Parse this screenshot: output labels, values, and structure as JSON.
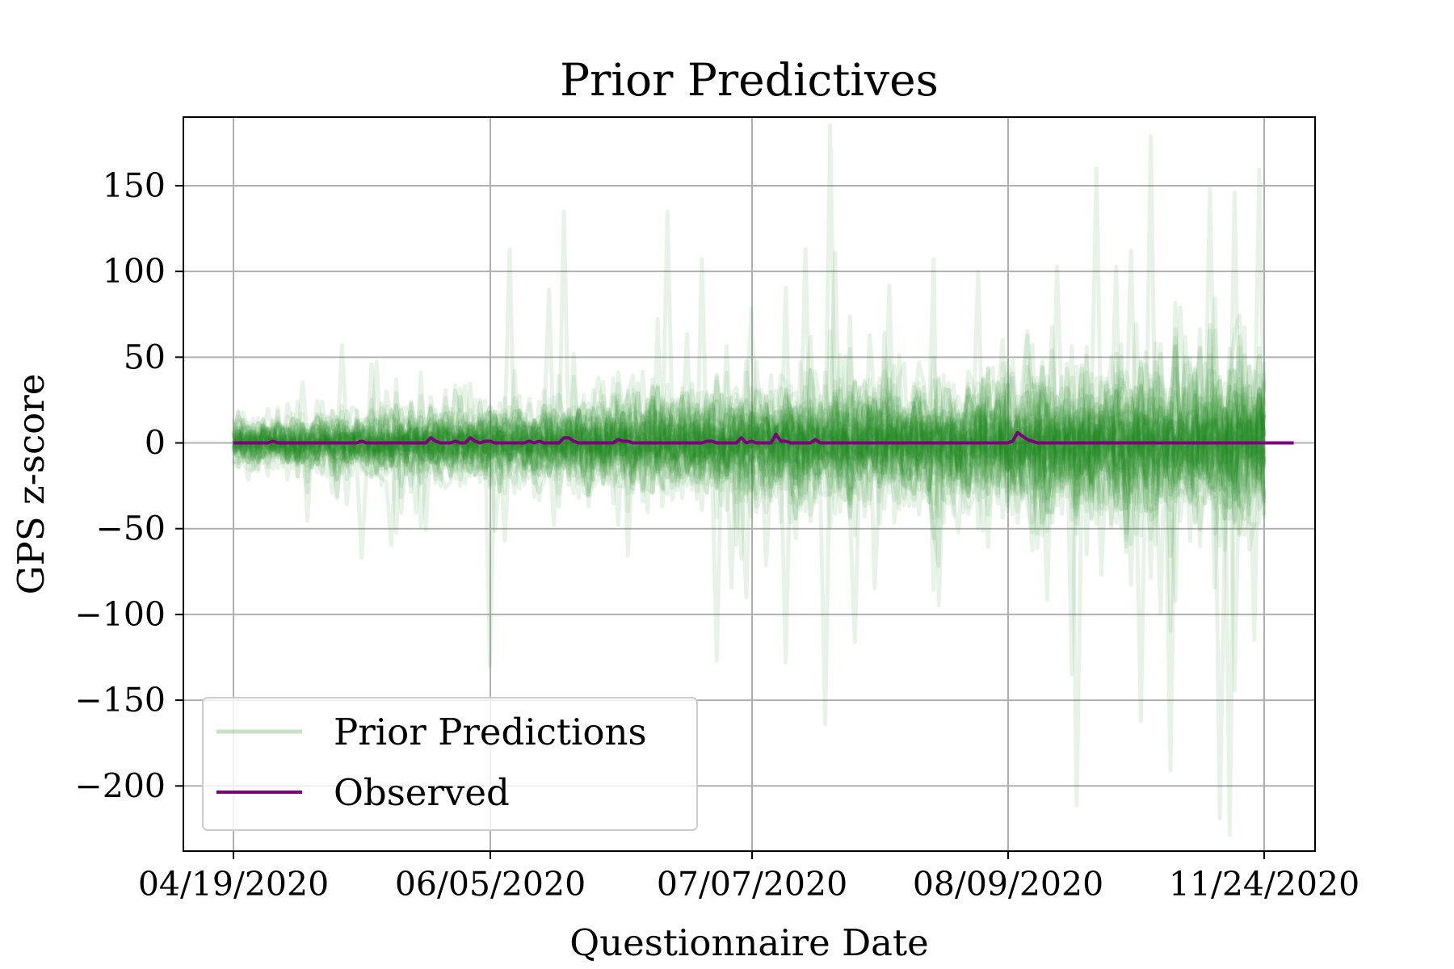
{
  "chart_data": {
    "type": "line",
    "title": "Prior Predictives",
    "xlabel": "Questionnaire Date",
    "ylabel": "GPS z-score",
    "x_tick_labels": [
      "04/19/2020",
      "06/05/2020",
      "07/07/2020",
      "08/09/2020",
      "11/24/2020"
    ],
    "y_ticks": [
      150,
      100,
      50,
      0,
      -50,
      -100,
      -150,
      -200
    ],
    "y_tick_labels": [
      "150",
      "100",
      "50",
      "0",
      "−50",
      "−100",
      "−150",
      "−200"
    ],
    "ylim": [
      -238,
      190
    ],
    "grid": true,
    "legend_position": "lower-left",
    "n_points": 210,
    "series": [
      {
        "name": "Prior Predictions",
        "color": "#228B22",
        "opacity": 0.1,
        "n_draws": 50,
        "description": "noisy prior predictive draws around zero, amplitude increasing over time",
        "notable_peaks": [
          {
            "x_index": 22,
            "value": 57
          },
          {
            "x_index": 56,
            "value": 113
          },
          {
            "x_index": 67,
            "value": 135
          },
          {
            "x_index": 88,
            "value": 135
          },
          {
            "x_index": 95,
            "value": 107
          },
          {
            "x_index": 122,
            "value": 111
          },
          {
            "x_index": 142,
            "value": 107
          },
          {
            "x_index": 167,
            "value": 103
          },
          {
            "x_index": 175,
            "value": 160
          },
          {
            "x_index": 182,
            "value": 112
          },
          {
            "x_index": 186,
            "value": 179
          },
          {
            "x_index": 198,
            "value": 148
          },
          {
            "x_index": 203,
            "value": 146
          }
        ],
        "notable_troughs": [
          {
            "x_index": 26,
            "value": -67
          },
          {
            "x_index": 52,
            "value": -130
          },
          {
            "x_index": 98,
            "value": -127
          },
          {
            "x_index": 112,
            "value": -128
          },
          {
            "x_index": 120,
            "value": -164
          },
          {
            "x_index": 170,
            "value": -135
          },
          {
            "x_index": 184,
            "value": -162
          },
          {
            "x_index": 200,
            "value": -219
          }
        ]
      },
      {
        "name": "Observed",
        "color": "#800080",
        "values": [
          0,
          0,
          0,
          0,
          0,
          0,
          0,
          0,
          1,
          0,
          0,
          0,
          0,
          0,
          0,
          0,
          0,
          0,
          0,
          0,
          0,
          0,
          0,
          0,
          0,
          0,
          1,
          0,
          0,
          0,
          0,
          0,
          0,
          0,
          0,
          0,
          0,
          0,
          0,
          0,
          3,
          1,
          0,
          0,
          0,
          1,
          0,
          0,
          3,
          1,
          0,
          1,
          1,
          0,
          0,
          0,
          0,
          0,
          0,
          0,
          1,
          0,
          1,
          0,
          0,
          0,
          0,
          3,
          3,
          1,
          0,
          0,
          0,
          0,
          0,
          0,
          0,
          0,
          2,
          1,
          1,
          0,
          0,
          0,
          0,
          0,
          0,
          0,
          0,
          0,
          0,
          0,
          0,
          0,
          0,
          0,
          1,
          1,
          0,
          0,
          0,
          0,
          0,
          3,
          0,
          1,
          0,
          0,
          0,
          0,
          5,
          1,
          1,
          0,
          0,
          0,
          0,
          0,
          2,
          0,
          0,
          0,
          0,
          0,
          0,
          0,
          0,
          0,
          0,
          0,
          0,
          0,
          0,
          0,
          0,
          0,
          0,
          0,
          0,
          0,
          0,
          0,
          0,
          0,
          0,
          0,
          0,
          0,
          0,
          0,
          0,
          0,
          0,
          0,
          0,
          0,
          0,
          0,
          1,
          6,
          4,
          2,
          1,
          0,
          0,
          0,
          0,
          0,
          0,
          0,
          0,
          0,
          0,
          0,
          0,
          0,
          0,
          0,
          0,
          0,
          0,
          0,
          0,
          0,
          0,
          0,
          0,
          0,
          0,
          0,
          0,
          0,
          0,
          0,
          0,
          0,
          0,
          0,
          0,
          0,
          0,
          0,
          0,
          0,
          0,
          0,
          0,
          0,
          0,
          0,
          0,
          0,
          0,
          0,
          0,
          0
        ]
      }
    ]
  }
}
